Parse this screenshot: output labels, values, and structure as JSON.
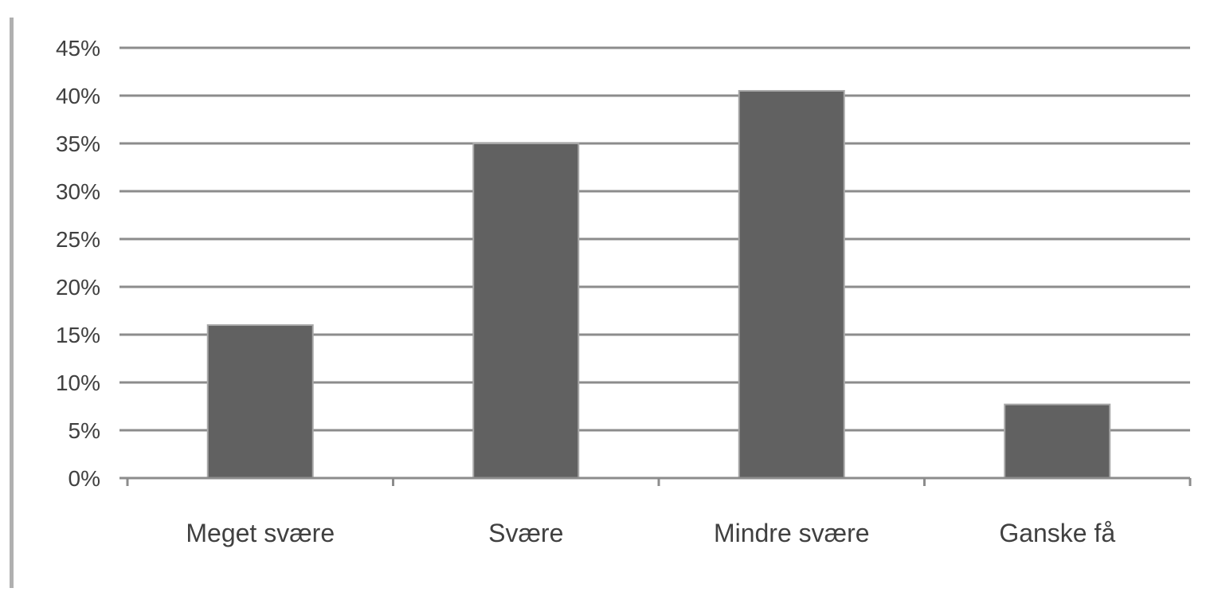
{
  "chart_data": {
    "type": "bar",
    "categories": [
      "Meget svære",
      "Svære",
      "Mindre svære",
      "Ganske få"
    ],
    "values": [
      16,
      35,
      40.5,
      7.7
    ],
    "value_unit": "%",
    "y_ticks": [
      "0%",
      "5%",
      "10%",
      "15%",
      "20%",
      "25%",
      "30%",
      "35%",
      "40%",
      "45%"
    ],
    "ylim": [
      0,
      45
    ],
    "grid": true,
    "legend": "none",
    "colors": {
      "bar": "#616161",
      "bar_edge": "#a8a8a8",
      "grid": "#8c8c8c",
      "axis": "#8c8c8c",
      "text": "#404040",
      "frame": "#b0b0b0"
    }
  }
}
